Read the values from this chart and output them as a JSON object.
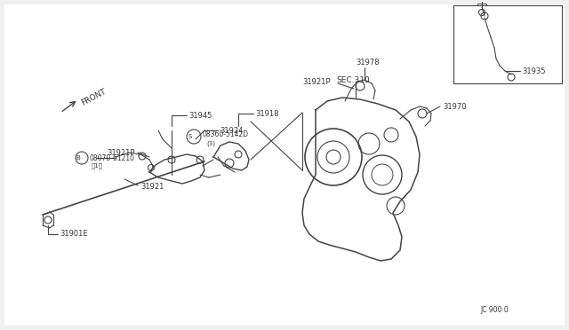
{
  "bg_color": "#f0f0f0",
  "line_color": "#444444",
  "text_color": "#333333",
  "figsize": [
    6.4,
    3.72
  ],
  "dpi": 100,
  "labels": {
    "31945": [
      0.305,
      0.435
    ],
    "31918": [
      0.43,
      0.435
    ],
    "08360_5142D": "08360-5142D",
    "B08070_61210": "B08070-61210",
    "31921P_left": "31921P",
    "31924": "31924",
    "31921": "31921",
    "31901E": "31901E",
    "SEC310": "SEC.310",
    "31921P_right": "31921P",
    "31970": "31970",
    "31978": "31978",
    "31935": "31935",
    "JC900": "JC 900·0",
    "FRONT": "FRONT"
  }
}
